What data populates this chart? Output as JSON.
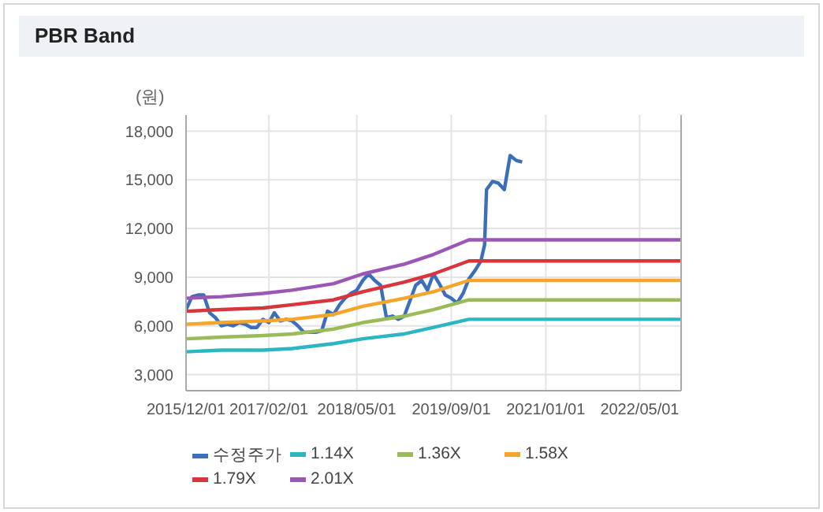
{
  "chart_data": {
    "type": "line",
    "title": "PBR Band",
    "ylabel": "(원)",
    "legend": "bottom",
    "grid": true,
    "marker": "none",
    "line_style": "solid",
    "xlim": [
      "2015-12-01",
      "2022-12-01"
    ],
    "xticks": [
      {
        "value": "2015-12-01",
        "label": "2015/12/01"
      },
      {
        "value": "2017-02-01",
        "label": "2017/02/01"
      },
      {
        "value": "2018-05-01",
        "label": "2018/05/01"
      },
      {
        "value": "2019-09-01",
        "label": "2019/09/01"
      },
      {
        "value": "2021-01-01",
        "label": "2021/01/01"
      },
      {
        "value": "2022-05-01",
        "label": "2022/05/01"
      }
    ],
    "ylim": [
      2000,
      19000
    ],
    "yticks": [
      {
        "value": 3000,
        "label": "3,000"
      },
      {
        "value": 6000,
        "label": "6,000"
      },
      {
        "value": 9000,
        "label": "9,000"
      },
      {
        "value": 12000,
        "label": "12,000"
      },
      {
        "value": 15000,
        "label": "15,000"
      },
      {
        "value": 18000,
        "label": "18,000"
      }
    ],
    "x": [
      "2015-12",
      "2016-06",
      "2017-01",
      "2017-06",
      "2018-01",
      "2018-06",
      "2019-01",
      "2019-06",
      "2019-12",
      "2022-12"
    ],
    "series": [
      {
        "name": "수정주가",
        "color": "#3b6fba",
        "x": [
          "2015-12",
          "2016-01",
          "2016-02",
          "2016-03",
          "2016-04",
          "2016-05",
          "2016-06",
          "2016-07",
          "2016-08",
          "2016-09",
          "2016-10",
          "2016-11",
          "2016-12",
          "2017-01",
          "2017-02",
          "2017-03",
          "2017-04",
          "2017-05",
          "2017-06",
          "2017-07",
          "2017-08",
          "2017-09",
          "2017-10",
          "2017-11",
          "2017-12",
          "2018-01",
          "2018-02",
          "2018-03",
          "2018-04",
          "2018-05",
          "2018-06",
          "2018-07",
          "2018-08",
          "2018-09",
          "2018-10",
          "2018-11",
          "2018-12",
          "2019-01",
          "2019-02",
          "2019-03",
          "2019-04",
          "2019-05",
          "2019-06",
          "2019-07",
          "2019-08",
          "2019-09",
          "2019-10",
          "2019-11",
          "2019-12",
          "2020-01",
          "2020-02",
          "2020-02-20",
          "2020-03",
          "2020-04",
          "2020-05",
          "2020-06",
          "2020-07",
          "2020-08",
          "2020-09"
        ],
        "values": [
          7000,
          7800,
          7900,
          7900,
          6800,
          6500,
          6000,
          6100,
          6000,
          6200,
          6100,
          5900,
          5900,
          6400,
          6200,
          6800,
          6300,
          6400,
          6300,
          6000,
          5600,
          5600,
          5600,
          5700,
          6900,
          6700,
          7300,
          7700,
          8000,
          8200,
          8800,
          9200,
          8800,
          8500,
          6500,
          6600,
          6400,
          6600,
          7600,
          8500,
          8800,
          8200,
          9200,
          8600,
          7900,
          7700,
          7400,
          8000,
          8900,
          9400,
          10000,
          11000,
          14400,
          14900,
          14800,
          14400,
          16500,
          16200,
          16100
        ]
      },
      {
        "name": "1.14X",
        "color": "#2cb5c2",
        "values": [
          4400,
          4500,
          4500,
          4600,
          4900,
          5200,
          5500,
          5900,
          6400,
          6400
        ]
      },
      {
        "name": "1.36X",
        "color": "#9bbb59",
        "values": [
          5200,
          5300,
          5400,
          5500,
          5800,
          6200,
          6600,
          7000,
          7600,
          7600
        ]
      },
      {
        "name": "1.58X",
        "color": "#f5a52a",
        "values": [
          6100,
          6200,
          6300,
          6400,
          6700,
          7200,
          7700,
          8100,
          8800,
          8800
        ]
      },
      {
        "name": "1.79X",
        "color": "#d8363c",
        "values": [
          6900,
          7000,
          7100,
          7300,
          7600,
          8100,
          8700,
          9200,
          10000,
          10000
        ]
      },
      {
        "name": "2.01X",
        "color": "#9a58b4",
        "values": [
          7700,
          7800,
          8000,
          8200,
          8600,
          9200,
          9800,
          10400,
          11300,
          11300
        ]
      }
    ]
  }
}
